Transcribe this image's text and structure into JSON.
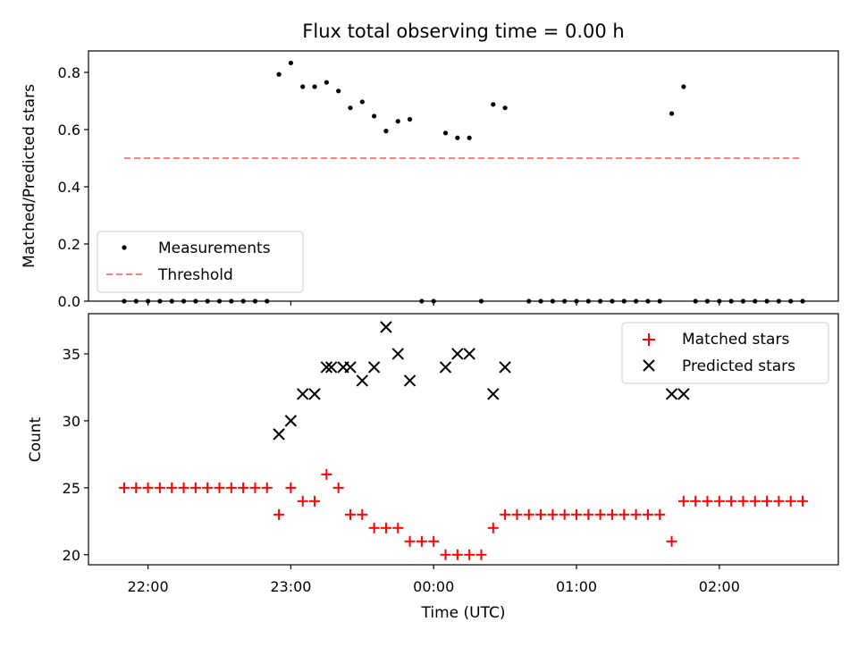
{
  "chart_data": [
    {
      "type": "scatter",
      "title": "Flux total observing time = 0.00 h",
      "ylabel": "Matched/Predicted stars",
      "xlabel": "",
      "ylim": [
        0,
        0.875
      ],
      "yticks": [
        0.0,
        0.2,
        0.4,
        0.6,
        0.8
      ],
      "ytick_labels": [
        "0.0",
        "0.2",
        "0.4",
        "0.6",
        "0.8"
      ],
      "grid": false,
      "legend": {
        "placement": "bottom-left",
        "entries": [
          "Measurements",
          "Threshold"
        ]
      },
      "threshold": {
        "name": "Threshold",
        "value": 0.5,
        "x_range": [
          "21:50",
          "02:35"
        ],
        "color": "#ff7f7f"
      },
      "series": [
        {
          "name": "Measurements",
          "marker": "dot",
          "color": "#000000",
          "points": [
            [
              "21:50",
              0
            ],
            [
              "21:55",
              0
            ],
            [
              "22:00",
              0
            ],
            [
              "22:05",
              0
            ],
            [
              "22:10",
              0
            ],
            [
              "22:15",
              0
            ],
            [
              "22:20",
              0
            ],
            [
              "22:25",
              0
            ],
            [
              "22:30",
              0
            ],
            [
              "22:35",
              0
            ],
            [
              "22:40",
              0
            ],
            [
              "22:45",
              0
            ],
            [
              "22:50",
              0
            ],
            [
              "22:55",
              0.793
            ],
            [
              "23:00",
              0.833
            ],
            [
              "23:05",
              0.75
            ],
            [
              "23:10",
              0.75
            ],
            [
              "23:15",
              0.765
            ],
            [
              "23:20",
              0.735
            ],
            [
              "23:25",
              0.676
            ],
            [
              "23:30",
              0.697
            ],
            [
              "23:35",
              0.647
            ],
            [
              "23:40",
              0.595
            ],
            [
              "23:45",
              0.629
            ],
            [
              "23:50",
              0.636
            ],
            [
              "23:55",
              0
            ],
            [
              "00:00",
              0
            ],
            [
              "00:05",
              0.588
            ],
            [
              "00:10",
              0.571
            ],
            [
              "00:15",
              0.571
            ],
            [
              "00:20",
              0
            ],
            [
              "00:25",
              0.688
            ],
            [
              "00:30",
              0.676
            ],
            [
              "00:40",
              0
            ],
            [
              "00:45",
              0
            ],
            [
              "00:50",
              0
            ],
            [
              "00:55",
              0
            ],
            [
              "01:00",
              0
            ],
            [
              "01:05",
              0
            ],
            [
              "01:10",
              0
            ],
            [
              "01:15",
              0
            ],
            [
              "01:20",
              0
            ],
            [
              "01:25",
              0
            ],
            [
              "01:30",
              0
            ],
            [
              "01:35",
              0
            ],
            [
              "01:40",
              0.656
            ],
            [
              "01:45",
              0.75
            ],
            [
              "01:50",
              0
            ],
            [
              "01:55",
              0
            ],
            [
              "02:00",
              0
            ],
            [
              "02:05",
              0
            ],
            [
              "02:10",
              0
            ],
            [
              "02:15",
              0
            ],
            [
              "02:20",
              0
            ],
            [
              "02:25",
              0
            ],
            [
              "02:30",
              0
            ],
            [
              "02:35",
              0
            ]
          ]
        }
      ]
    },
    {
      "type": "scatter",
      "title": "",
      "ylabel": "Count",
      "xlabel": "Time (UTC)",
      "ylim": [
        19.25,
        38.0
      ],
      "yticks": [
        20,
        25,
        30,
        35
      ],
      "ytick_labels": [
        "20",
        "25",
        "30",
        "35"
      ],
      "xlim": [
        "21:35",
        "02:50"
      ],
      "xticks": [
        "22:00",
        "23:00",
        "00:00",
        "01:00",
        "02:00"
      ],
      "xtick_labels": [
        "22:00",
        "23:00",
        "00:00",
        "01:00",
        "02:00"
      ],
      "grid": false,
      "legend": {
        "placement": "top-right",
        "entries": [
          "Matched stars",
          "Predicted stars"
        ]
      },
      "series": [
        {
          "name": "Matched stars",
          "marker": "plus",
          "color": "#ff0000",
          "points": [
            [
              "21:50",
              25
            ],
            [
              "21:55",
              25
            ],
            [
              "22:00",
              25
            ],
            [
              "22:05",
              25
            ],
            [
              "22:10",
              25
            ],
            [
              "22:15",
              25
            ],
            [
              "22:20",
              25
            ],
            [
              "22:25",
              25
            ],
            [
              "22:30",
              25
            ],
            [
              "22:35",
              25
            ],
            [
              "22:40",
              25
            ],
            [
              "22:45",
              25
            ],
            [
              "22:50",
              25
            ],
            [
              "22:55",
              23
            ],
            [
              "23:00",
              25
            ],
            [
              "23:05",
              24
            ],
            [
              "23:10",
              24
            ],
            [
              "23:15",
              26
            ],
            [
              "23:20",
              25
            ],
            [
              "23:25",
              23
            ],
            [
              "23:30",
              23
            ],
            [
              "23:35",
              22
            ],
            [
              "23:40",
              22
            ],
            [
              "23:45",
              22
            ],
            [
              "23:50",
              21
            ],
            [
              "23:55",
              21
            ],
            [
              "00:00",
              21
            ],
            [
              "00:05",
              20
            ],
            [
              "00:10",
              20
            ],
            [
              "00:15",
              20
            ],
            [
              "00:20",
              20
            ],
            [
              "00:25",
              22
            ],
            [
              "00:30",
              23
            ],
            [
              "00:35",
              23
            ],
            [
              "00:40",
              23
            ],
            [
              "00:45",
              23
            ],
            [
              "00:50",
              23
            ],
            [
              "00:55",
              23
            ],
            [
              "01:00",
              23
            ],
            [
              "01:05",
              23
            ],
            [
              "01:10",
              23
            ],
            [
              "01:15",
              23
            ],
            [
              "01:20",
              23
            ],
            [
              "01:25",
              23
            ],
            [
              "01:30",
              23
            ],
            [
              "01:35",
              23
            ],
            [
              "01:40",
              21
            ],
            [
              "01:45",
              24
            ],
            [
              "01:50",
              24
            ],
            [
              "01:55",
              24
            ],
            [
              "02:00",
              24
            ],
            [
              "02:05",
              24
            ],
            [
              "02:10",
              24
            ],
            [
              "02:15",
              24
            ],
            [
              "02:20",
              24
            ],
            [
              "02:25",
              24
            ],
            [
              "02:30",
              24
            ],
            [
              "02:35",
              24
            ]
          ]
        },
        {
          "name": "Predicted stars",
          "marker": "x",
          "color": "#000000",
          "points": [
            [
              "22:55",
              29
            ],
            [
              "23:00",
              30
            ],
            [
              "23:05",
              32
            ],
            [
              "23:10",
              32
            ],
            [
              "23:15",
              34
            ],
            [
              "23:17",
              34
            ],
            [
              "23:22",
              34
            ],
            [
              "23:25",
              34
            ],
            [
              "23:30",
              33
            ],
            [
              "23:35",
              34
            ],
            [
              "23:40",
              37
            ],
            [
              "23:45",
              35
            ],
            [
              "23:50",
              33
            ],
            [
              "00:05",
              34
            ],
            [
              "00:10",
              35
            ],
            [
              "00:15",
              35
            ],
            [
              "00:25",
              32
            ],
            [
              "00:30",
              34
            ],
            [
              "01:40",
              32
            ],
            [
              "01:45",
              32
            ]
          ]
        }
      ]
    }
  ]
}
